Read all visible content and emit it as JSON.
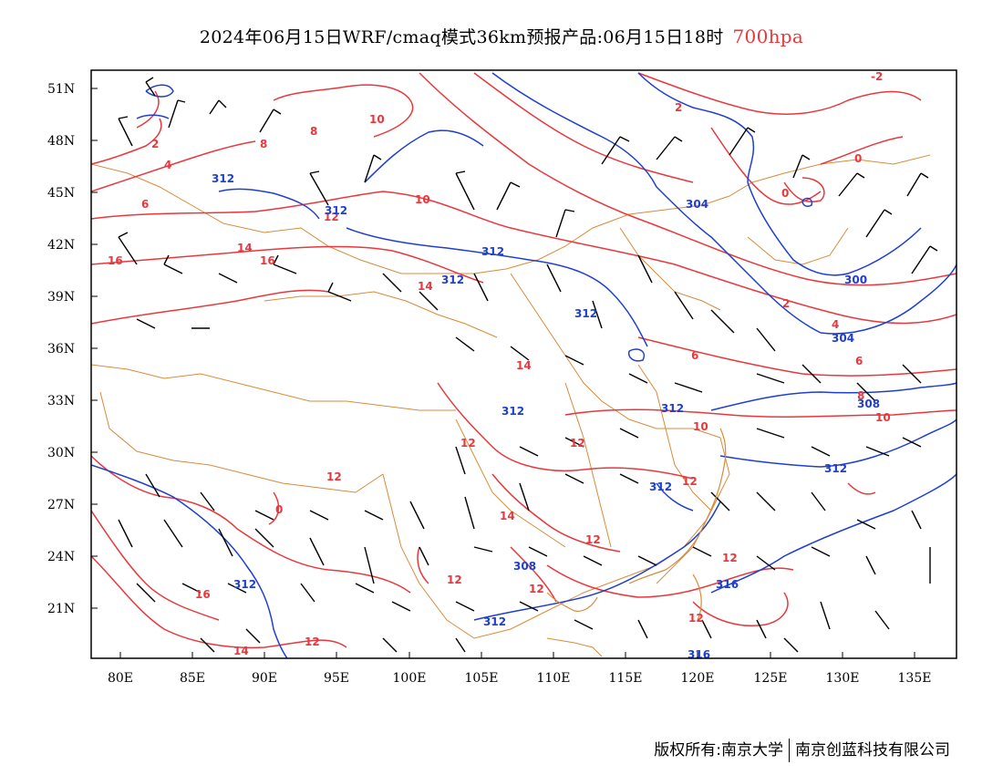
{
  "title": {
    "main": "2024年06月15日WRF/cmaq模式36km预报产品:06月15日18时",
    "level": "700hpa"
  },
  "footer": {
    "copyright": "版权所有:南京大学",
    "company": "南京创蓝科技有限公司"
  },
  "axes": {
    "lat_ticks": [
      "51N",
      "48N",
      "45N",
      "42N",
      "39N",
      "36N",
      "33N",
      "30N",
      "27N",
      "24N",
      "21N"
    ],
    "lon_ticks": [
      "80E",
      "85E",
      "90E",
      "95E",
      "100E",
      "105E",
      "110E",
      "115E",
      "120E",
      "125E",
      "130E",
      "135E"
    ]
  },
  "colors": {
    "temperature": "#e8383d",
    "height": "#1f3fd1",
    "boundary": "#d98b3a",
    "wind": "#000000"
  },
  "temperature_labels": [
    "-2",
    "2",
    "4",
    "6",
    "8",
    "10",
    "12",
    "14",
    "16",
    "0"
  ],
  "height_labels": [
    "312",
    "304",
    "300",
    "308",
    "316"
  ]
}
